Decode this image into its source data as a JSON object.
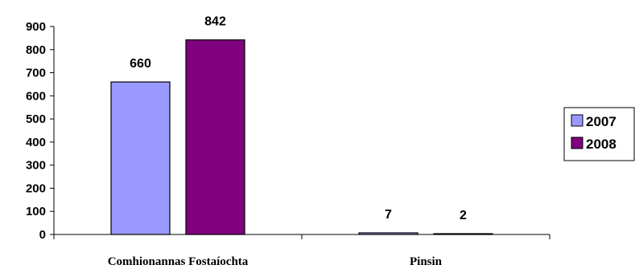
{
  "chart_data": {
    "type": "bar",
    "categories": [
      "Comhionannas Fostaíochta",
      "Pinsin"
    ],
    "series": [
      {
        "name": "2007",
        "color": "#9999FF",
        "values": [
          660,
          7
        ]
      },
      {
        "name": "2008",
        "color": "#800080",
        "values": [
          842,
          2
        ]
      }
    ],
    "ylim": [
      0,
      900
    ],
    "yticks": [
      0,
      100,
      200,
      300,
      400,
      500,
      600,
      700,
      800,
      900
    ],
    "grid": false,
    "legend_position": "right"
  }
}
